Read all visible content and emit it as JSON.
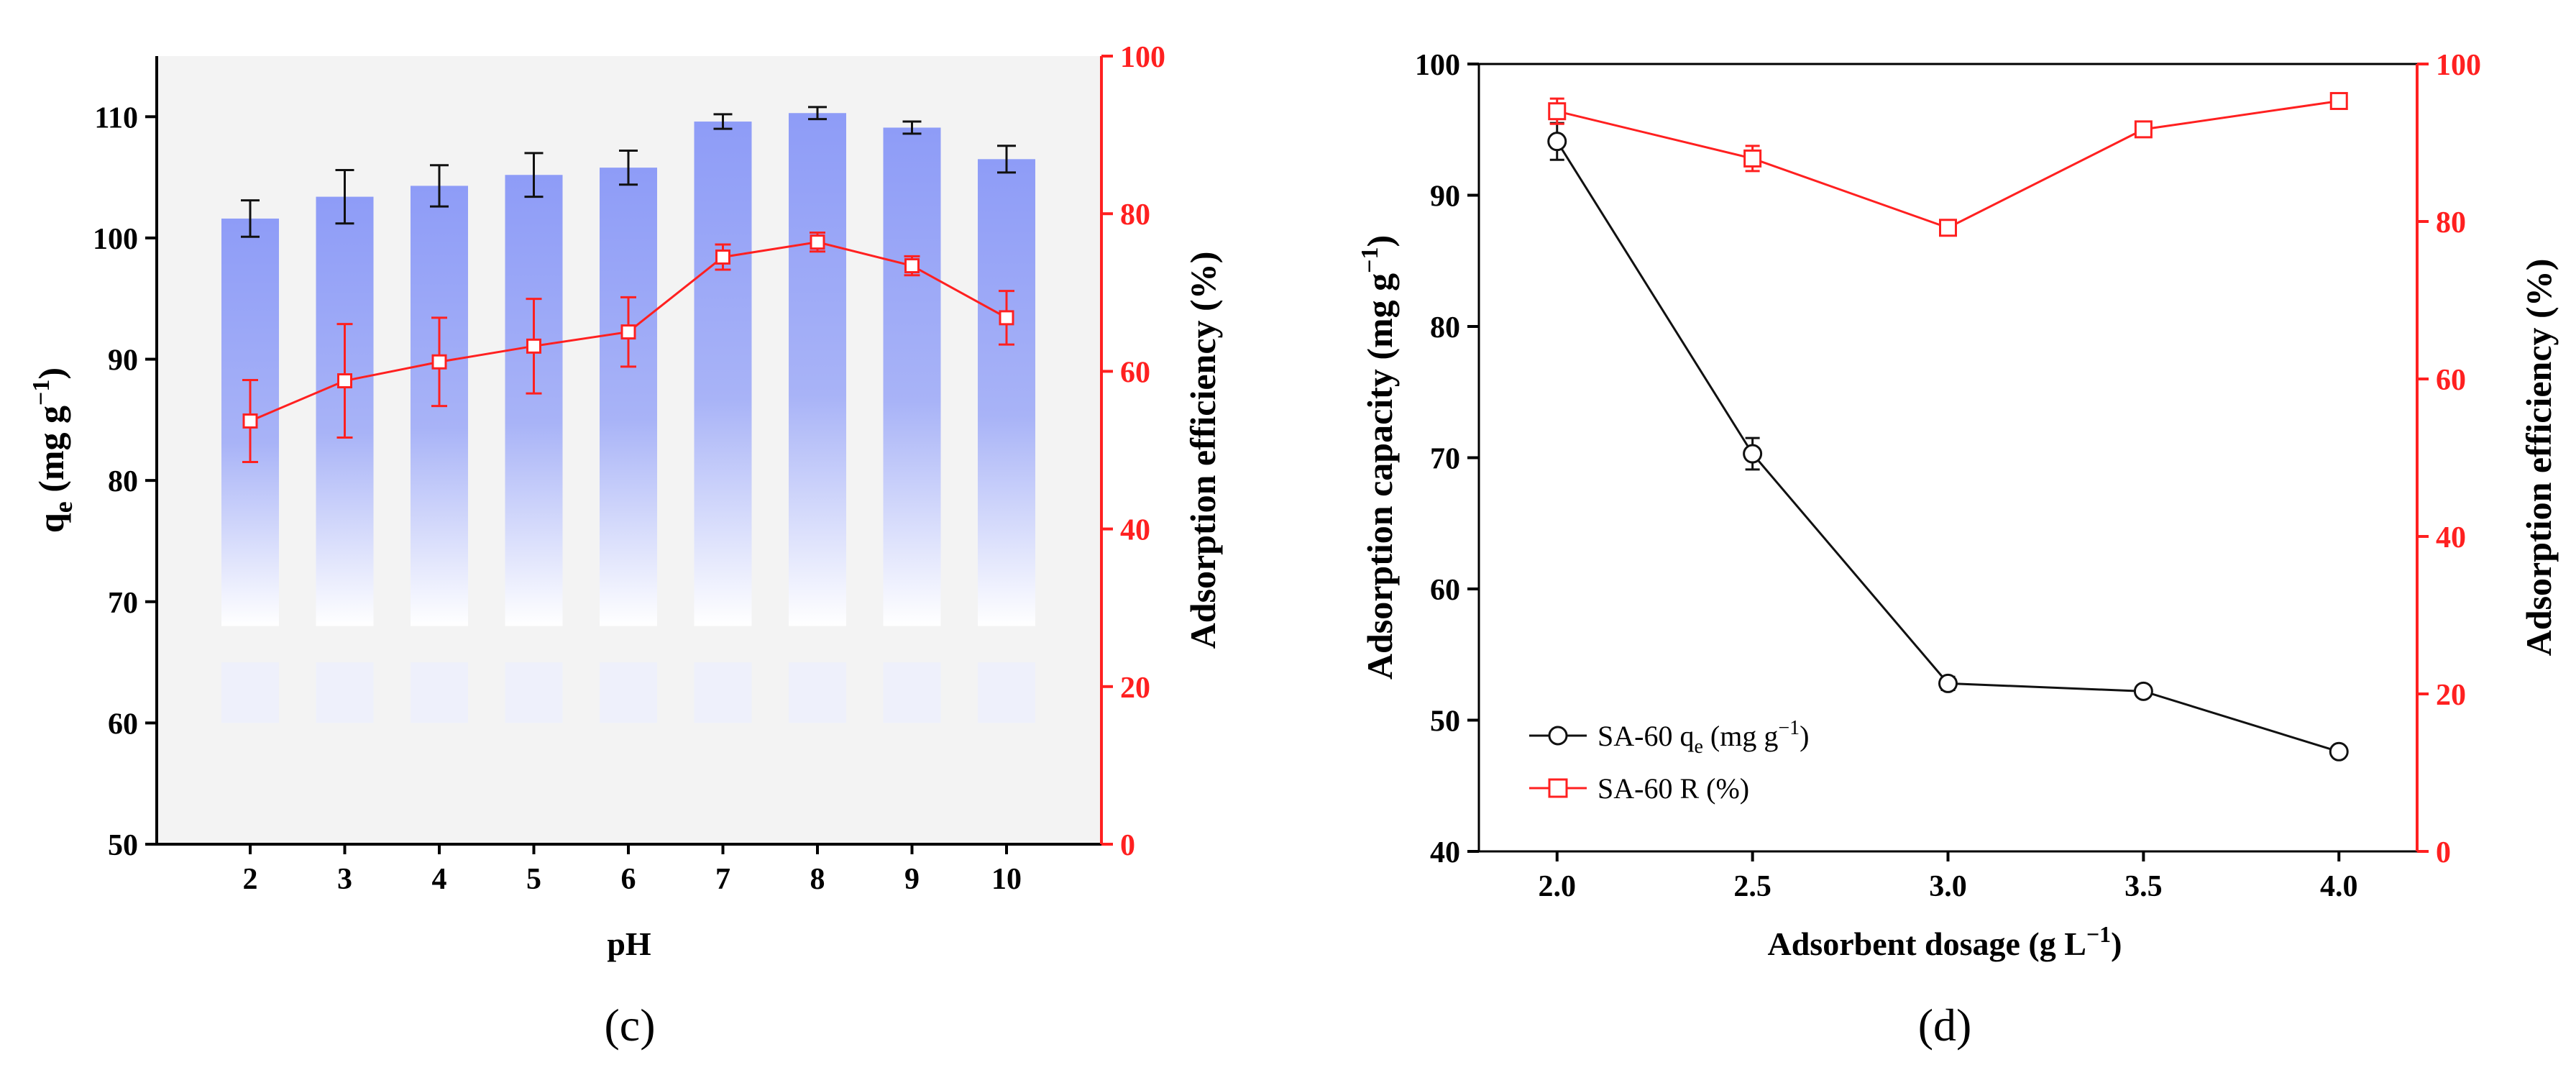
{
  "colors": {
    "black_series": "#111111",
    "red_series": "#ff2020",
    "bar_top": "#8e9cf7",
    "bar_bottom": "#ffffff",
    "panel_bg_c": "#f3f3f3"
  },
  "chart_data": [
    {
      "type": "bar",
      "panel_label": "(c)",
      "xlabel": "pH",
      "ylabel_main": "q",
      "ylabel_sub": "e",
      "ylabel_unit": "(mg g",
      "ylabel_sup": "−1",
      "ylabel_close": ")",
      "y2label": "Adsorption efficiency (%)",
      "ylim": [
        50,
        115
      ],
      "y2lim": [
        0,
        100
      ],
      "yticks": [
        "50",
        "60",
        "70",
        "80",
        "90",
        "100",
        "110"
      ],
      "y2ticks": [
        "0",
        "20",
        "40",
        "60",
        "80",
        "100"
      ],
      "categories": [
        "2",
        "3",
        "4",
        "5",
        "6",
        "7",
        "8",
        "9",
        "10"
      ],
      "series": [
        {
          "kind": "bar",
          "values": [
            101.6,
            103.4,
            104.3,
            105.2,
            105.8,
            109.6,
            110.3,
            109.1,
            106.5
          ],
          "errors": [
            1.5,
            2.2,
            1.7,
            1.8,
            1.4,
            0.6,
            0.5,
            0.5,
            1.1
          ]
        },
        {
          "kind": "line",
          "axis": "right",
          "values": [
            53.7,
            58.8,
            61.2,
            63.2,
            65.0,
            74.5,
            76.4,
            73.4,
            66.8
          ],
          "errors": [
            5.2,
            7.2,
            5.6,
            6.0,
            4.4,
            1.6,
            1.2,
            1.2,
            3.4
          ]
        }
      ]
    },
    {
      "type": "line",
      "panel_label": "(d)",
      "xlabel_text": "Adsorbent dosage (g L",
      "xlabel_sup": "−1",
      "xlabel_close": ")",
      "ylabel_text": "Adsorption capacity (mg g",
      "ylabel_sup": "−1",
      "ylabel_close": ")",
      "y2label": "Adsorption efficiency (%)",
      "xlim": [
        1.8,
        4.2
      ],
      "ylim": [
        40,
        100
      ],
      "y2lim": [
        0,
        100
      ],
      "xticks": [
        "2.0",
        "2.5",
        "3.0",
        "3.5",
        "4.0"
      ],
      "yticks": [
        "40",
        "50",
        "60",
        "70",
        "80",
        "90",
        "100"
      ],
      "y2ticks": [
        "0",
        "20",
        "40",
        "60",
        "80",
        "100"
      ],
      "x": [
        2.0,
        2.5,
        3.0,
        3.5,
        4.0
      ],
      "legend_placement": "bottom-left",
      "series": [
        {
          "kind": "line",
          "marker": "circle",
          "name_main": "SA-60 q",
          "name_sub": "e",
          "name_unit": " (mg g",
          "name_sup": "−1",
          "name_close": ")",
          "values": [
            94.1,
            70.3,
            52.8,
            52.2,
            47.6
          ],
          "errors": [
            1.4,
            1.2,
            0.5,
            0.3,
            0.3
          ]
        },
        {
          "kind": "line",
          "marker": "square",
          "axis": "right",
          "name": "SA-60 R (%)",
          "values": [
            94.0,
            88.0,
            79.2,
            91.7,
            95.3
          ],
          "errors": [
            1.6,
            1.6,
            0.8,
            0.8,
            0.8
          ]
        }
      ]
    }
  ]
}
